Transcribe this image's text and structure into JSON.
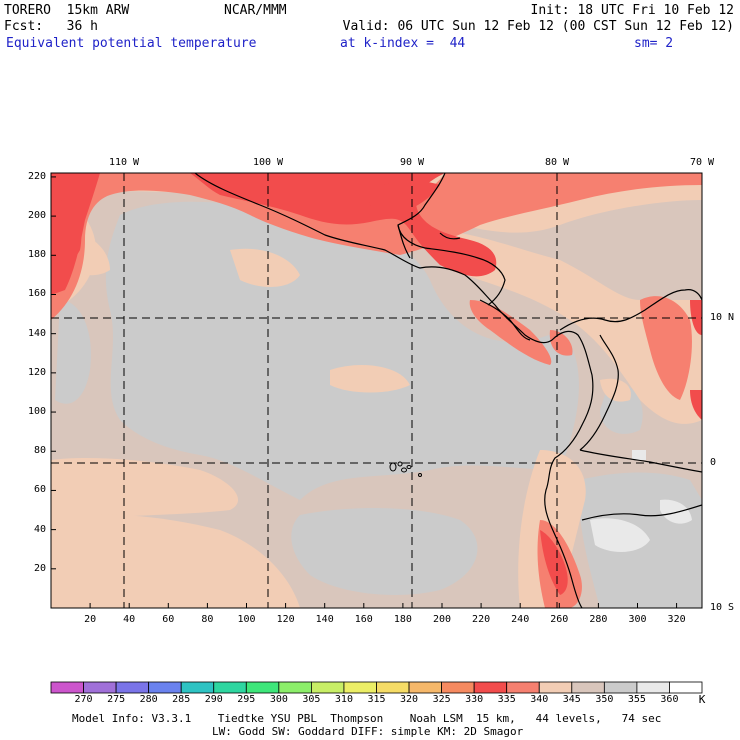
{
  "header": {
    "model": "TORERO  15km ARW",
    "org": "NCAR/MMM",
    "init": "Init: 18 UTC Fri 10 Feb 12",
    "fcst": "Fcst:   36 h",
    "valid": "Valid: 06 UTC Sun 12 Feb 12 (00 CST Sun 12 Feb 12)",
    "field": "Equivalent potential temperature",
    "level": "at k-index =  44",
    "smooth": "sm= 2"
  },
  "map": {
    "top_axis_labels": [
      "110 W",
      "100 W",
      "90 W",
      "80 W",
      "70 W"
    ],
    "right_axis_labels": [
      "10 N",
      "0",
      "10 S"
    ],
    "left_axis_ticks": [
      20,
      40,
      60,
      80,
      100,
      120,
      140,
      160,
      180,
      200,
      220
    ],
    "bottom_axis_ticks": [
      20,
      40,
      60,
      80,
      100,
      120,
      140,
      160,
      180,
      200,
      220,
      240,
      260,
      280,
      300,
      320
    ],
    "colors": {
      "c330": "#f24c4c",
      "c335": "#f68070",
      "c340": "#f2cdb5",
      "c345": "#d9c6bc",
      "c350": "#cbcbcb",
      "c355": "#e9e9e9",
      "grid": "#000000"
    }
  },
  "colorbar": {
    "labels": [
      "270",
      "275",
      "280",
      "285",
      "290",
      "295",
      "300",
      "305",
      "310",
      "315",
      "320",
      "325",
      "330",
      "335",
      "340",
      "345",
      "350",
      "355",
      "360"
    ],
    "unit": "K",
    "colors": [
      "#cc55cc",
      "#a070d8",
      "#7a74e8",
      "#6a82ee",
      "#2ec3c3",
      "#2ed6a0",
      "#3ee67a",
      "#8cee6a",
      "#c8ee66",
      "#ecee66",
      "#f6dc66",
      "#f6b86a",
      "#f68a60",
      "#f24c4c",
      "#f68070",
      "#f2cdb5",
      "#d9c6bc",
      "#cbcbcb",
      "#e9e9e9",
      "#ffffff"
    ]
  },
  "footer": {
    "line1": "Model Info: V3.3.1    Tiedtke YSU PBL  Thompson    Noah LSM  15 km,   44 levels,   74 sec",
    "line2": "LW: Godd SW: Goddard DIFF: simple KM: 2D Smagor"
  }
}
